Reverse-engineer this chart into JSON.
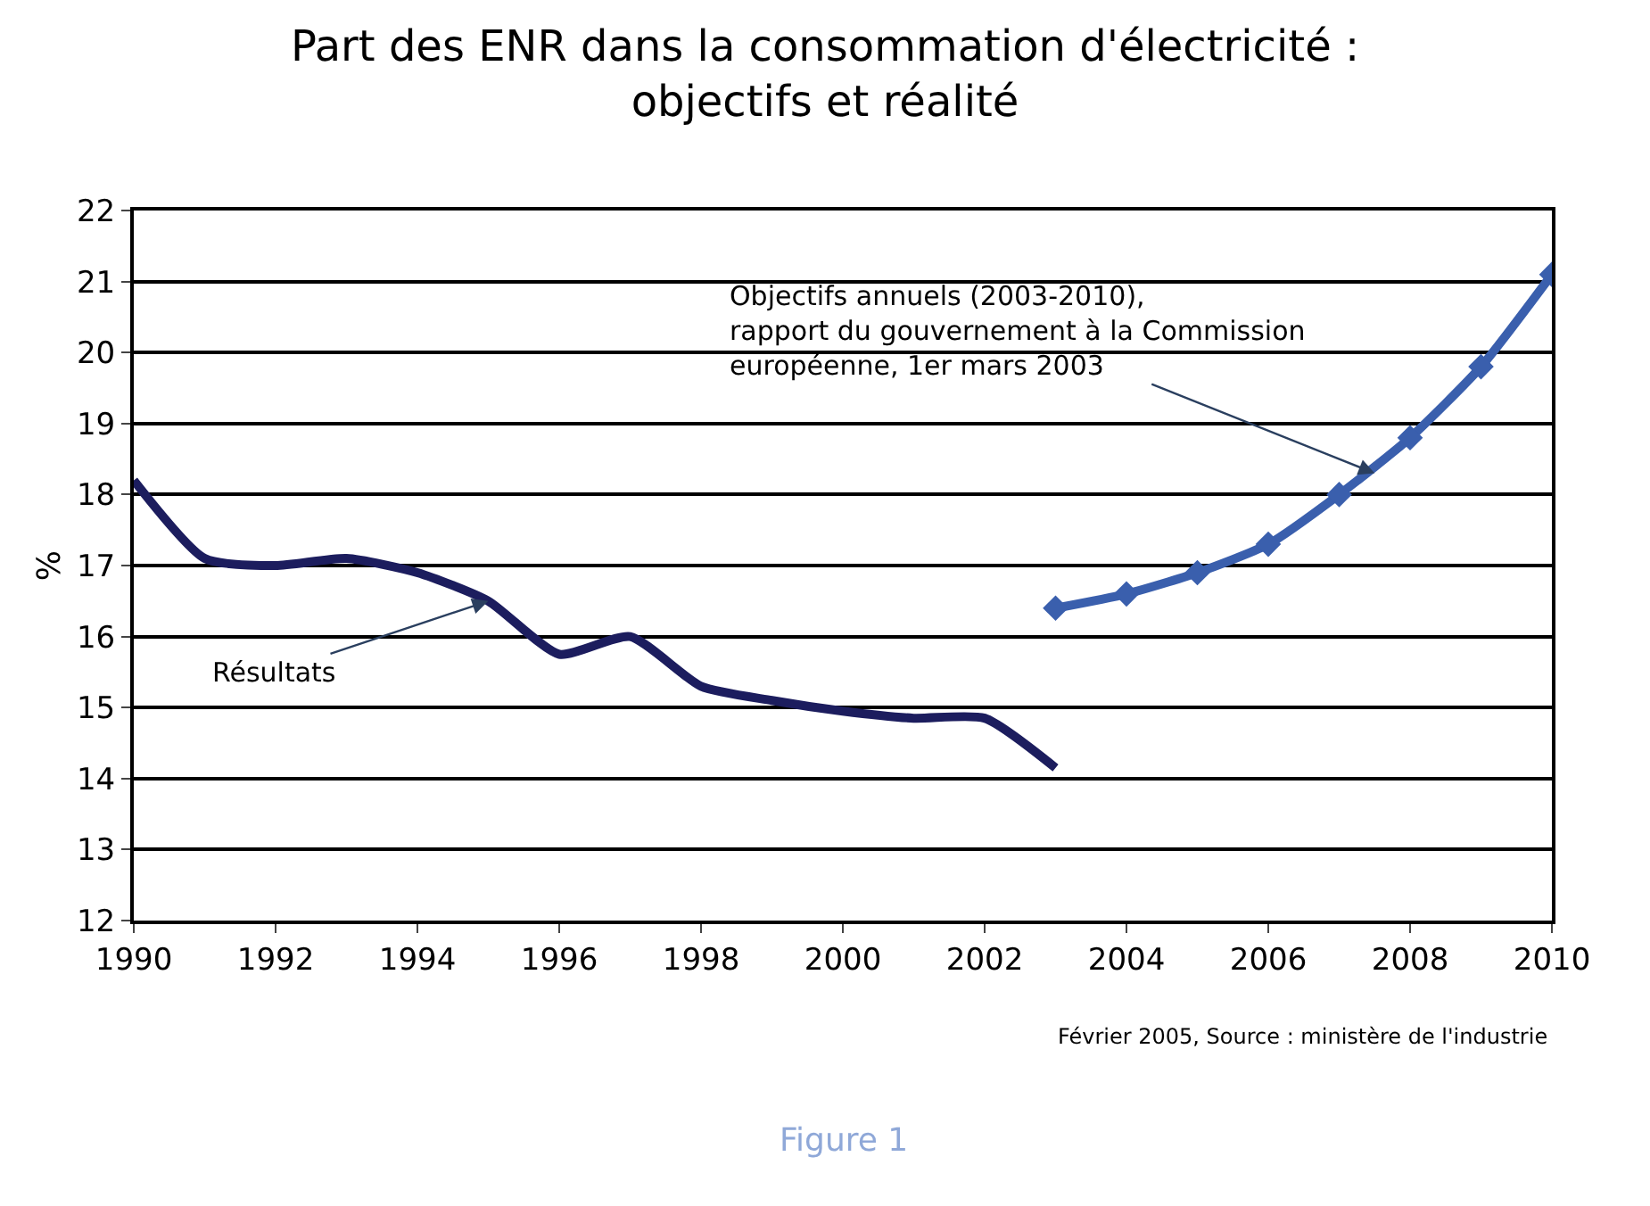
{
  "chart_data": {
    "type": "line",
    "title": "Part des ENR dans la consommation d'électricité :\nobjectifs et réalité",
    "ylabel": "%",
    "xlim": [
      1990,
      2010
    ],
    "xticks": [
      1990,
      1992,
      1994,
      1996,
      1998,
      2000,
      2002,
      2004,
      2006,
      2008,
      2010
    ],
    "ylim": [
      12,
      22
    ],
    "yticks": [
      12,
      13,
      14,
      15,
      16,
      17,
      18,
      19,
      20,
      21,
      22
    ],
    "grid": "y",
    "series": [
      {
        "color": "#1c1d5e",
        "marker": "none",
        "x": [
          1990,
          1991,
          1992,
          1993,
          1994,
          1995,
          1996,
          1997,
          1998,
          1999,
          2000,
          2001,
          2002,
          2003
        ],
        "values": [
          18.2,
          17.1,
          17.0,
          17.1,
          16.9,
          16.5,
          15.75,
          16.0,
          15.3,
          15.1,
          14.95,
          14.85,
          14.85,
          14.15
        ]
      },
      {
        "color": "#3a5fad",
        "marker": "diamond",
        "x": [
          2003,
          2004,
          2005,
          2006,
          2007,
          2008,
          2009,
          2010
        ],
        "values": [
          16.4,
          16.6,
          16.9,
          17.3,
          18.0,
          18.8,
          19.8,
          21.1
        ]
      }
    ],
    "annotations": [
      {
        "text": "Résultats",
        "x": 1995,
        "y": 16.5
      },
      {
        "text": "Objectifs annuels (2003-2010),\nrapport du gouvernement à la Commission\neuropéenne, 1er mars 2003",
        "x": 2007.5,
        "y": 18.3
      },
      "Février 2005, Source : ministère de l'industrie",
      "Figure 1"
    ]
  }
}
